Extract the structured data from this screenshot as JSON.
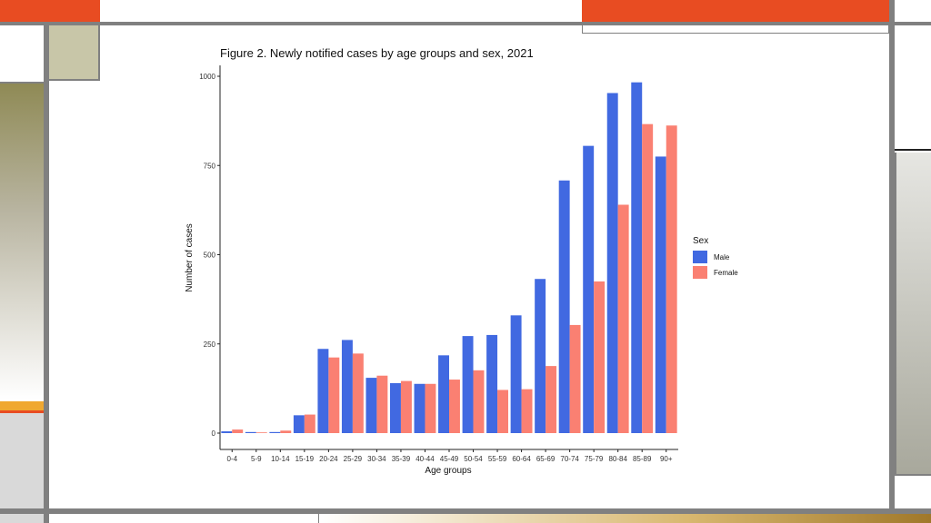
{
  "colors": {
    "male": "#4169E1",
    "female": "#FA8072",
    "accent_orange": "#E84C22",
    "accent_gold": "#F0A830",
    "frame_gray": "#808080",
    "olive": "#8F8A55",
    "khaki": "#C8C6A8"
  },
  "chart_data": {
    "type": "bar",
    "title": "Figure 2. Newly notified cases by age groups and sex, 2021",
    "xlabel": "Age groups",
    "ylabel": "Number of cases",
    "ylim": [
      0,
      1000
    ],
    "yticks": [
      0,
      250,
      500,
      750,
      1000
    ],
    "categories": [
      "0-4",
      "5-9",
      "10-14",
      "15-19",
      "20-24",
      "25-29",
      "30-34",
      "35-39",
      "40-44",
      "45-49",
      "50-54",
      "55-59",
      "60-64",
      "65-69",
      "70-74",
      "75-79",
      "80-84",
      "85-89",
      "90+"
    ],
    "legend_title": "Sex",
    "legend_position": "right",
    "grid": false,
    "series": [
      {
        "name": "Male",
        "values": [
          5,
          3,
          3,
          50,
          236,
          261,
          155,
          140,
          138,
          218,
          272,
          275,
          330,
          432,
          708,
          805,
          953,
          983,
          775
        ]
      },
      {
        "name": "Female",
        "values": [
          10,
          2,
          7,
          52,
          212,
          223,
          161,
          146,
          138,
          150,
          176,
          121,
          123,
          188,
          303,
          425,
          640,
          866,
          862
        ]
      }
    ]
  }
}
